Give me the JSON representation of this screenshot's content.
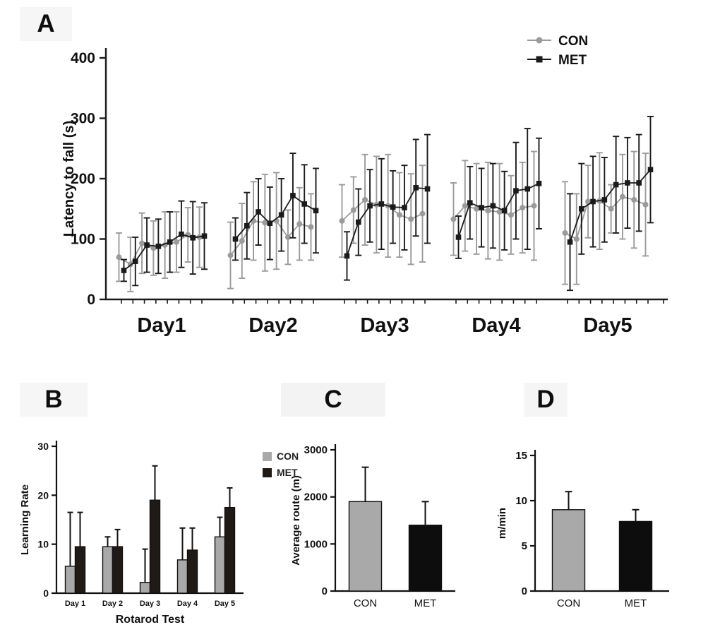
{
  "panels": {
    "a": "A",
    "b": "B",
    "c": "C",
    "d": "D"
  },
  "chart_data": [
    {
      "id": "panel-a",
      "type": "line",
      "title": "",
      "ylabel": "Latency to fall (s)",
      "ylim": [
        0,
        400
      ],
      "yticks": [
        0,
        100,
        200,
        300,
        400
      ],
      "group_labels": [
        "Day1",
        "Day2",
        "Day3",
        "Day4",
        "Day5"
      ],
      "trials_per_group": 8,
      "legend_position": "top-right",
      "series": [
        {
          "name": "CON",
          "marker": "circle",
          "color": "#9b9b9b",
          "values": [
            70,
            58,
            93,
            85,
            90,
            95,
            107,
            103,
            73,
            97,
            130,
            127,
            130,
            103,
            125,
            120,
            130,
            148,
            165,
            157,
            155,
            140,
            133,
            142,
            133,
            155,
            150,
            147,
            145,
            140,
            152,
            155,
            110,
            100,
            162,
            163,
            150,
            170,
            165,
            157
          ],
          "errors": [
            40,
            45,
            50,
            45,
            55,
            50,
            45,
            50,
            55,
            62,
            65,
            80,
            80,
            45,
            60,
            55,
            60,
            55,
            75,
            80,
            85,
            70,
            75,
            80,
            60,
            75,
            75,
            80,
            80,
            65,
            75,
            90,
            85,
            75,
            60,
            80,
            40,
            70,
            80,
            85
          ]
        },
        {
          "name": "MET",
          "marker": "square",
          "color": "#1b1b1b",
          "values": [
            48,
            63,
            90,
            88,
            95,
            108,
            102,
            105,
            100,
            122,
            145,
            126,
            140,
            172,
            158,
            147,
            72,
            128,
            155,
            158,
            153,
            152,
            185,
            183,
            103,
            160,
            152,
            155,
            147,
            180,
            183,
            192,
            95,
            150,
            162,
            165,
            190,
            193,
            193,
            215
          ],
          "errors": [
            18,
            40,
            45,
            45,
            50,
            55,
            60,
            55,
            35,
            55,
            55,
            60,
            60,
            70,
            65,
            70,
            40,
            55,
            60,
            75,
            60,
            70,
            80,
            90,
            35,
            60,
            65,
            70,
            65,
            80,
            100,
            75,
            80,
            75,
            75,
            70,
            80,
            75,
            80,
            88
          ]
        }
      ]
    },
    {
      "id": "panel-b",
      "type": "bar",
      "ylabel": "Learning Rate",
      "xlabel": "Rotarod Test",
      "ylim": [
        0,
        30
      ],
      "yticks": [
        0,
        10,
        20,
        30
      ],
      "categories": [
        "Day 1",
        "Day 2",
        "Day 3",
        "Day 4",
        "Day 5"
      ],
      "legend": true,
      "series": [
        {
          "name": "CON",
          "color": "#a9a9a9",
          "values": [
            5.5,
            9.5,
            2.2,
            6.8,
            11.5
          ],
          "errors": [
            11,
            2,
            6.8,
            6.5,
            4
          ]
        },
        {
          "name": "MET",
          "color": "#201a17",
          "values": [
            9.5,
            9.5,
            19,
            8.8,
            17.5
          ],
          "errors": [
            7,
            3.5,
            7,
            4.5,
            4
          ]
        }
      ]
    },
    {
      "id": "panel-c",
      "type": "bar",
      "ylabel": "Average route (m)",
      "xlabel": "",
      "ylim": [
        0,
        3000
      ],
      "yticks": [
        0,
        1000,
        2000,
        3000
      ],
      "categories": [
        "CON",
        "MET"
      ],
      "legend": false,
      "series": [
        {
          "name": "",
          "colors": [
            "#a9a9a9",
            "#0d0d0d"
          ],
          "values": [
            1900,
            1400
          ],
          "errors": [
            730,
            500
          ]
        }
      ]
    },
    {
      "id": "panel-d",
      "type": "bar",
      "ylabel": "m/min",
      "xlabel": "",
      "ylim": [
        0,
        15
      ],
      "yticks": [
        0,
        5,
        10,
        15
      ],
      "categories": [
        "CON",
        "MET"
      ],
      "legend": false,
      "series": [
        {
          "name": "",
          "colors": [
            "#a9a9a9",
            "#0d0d0d"
          ],
          "values": [
            9,
            7.7
          ],
          "errors": [
            2,
            1.3
          ]
        }
      ]
    }
  ]
}
